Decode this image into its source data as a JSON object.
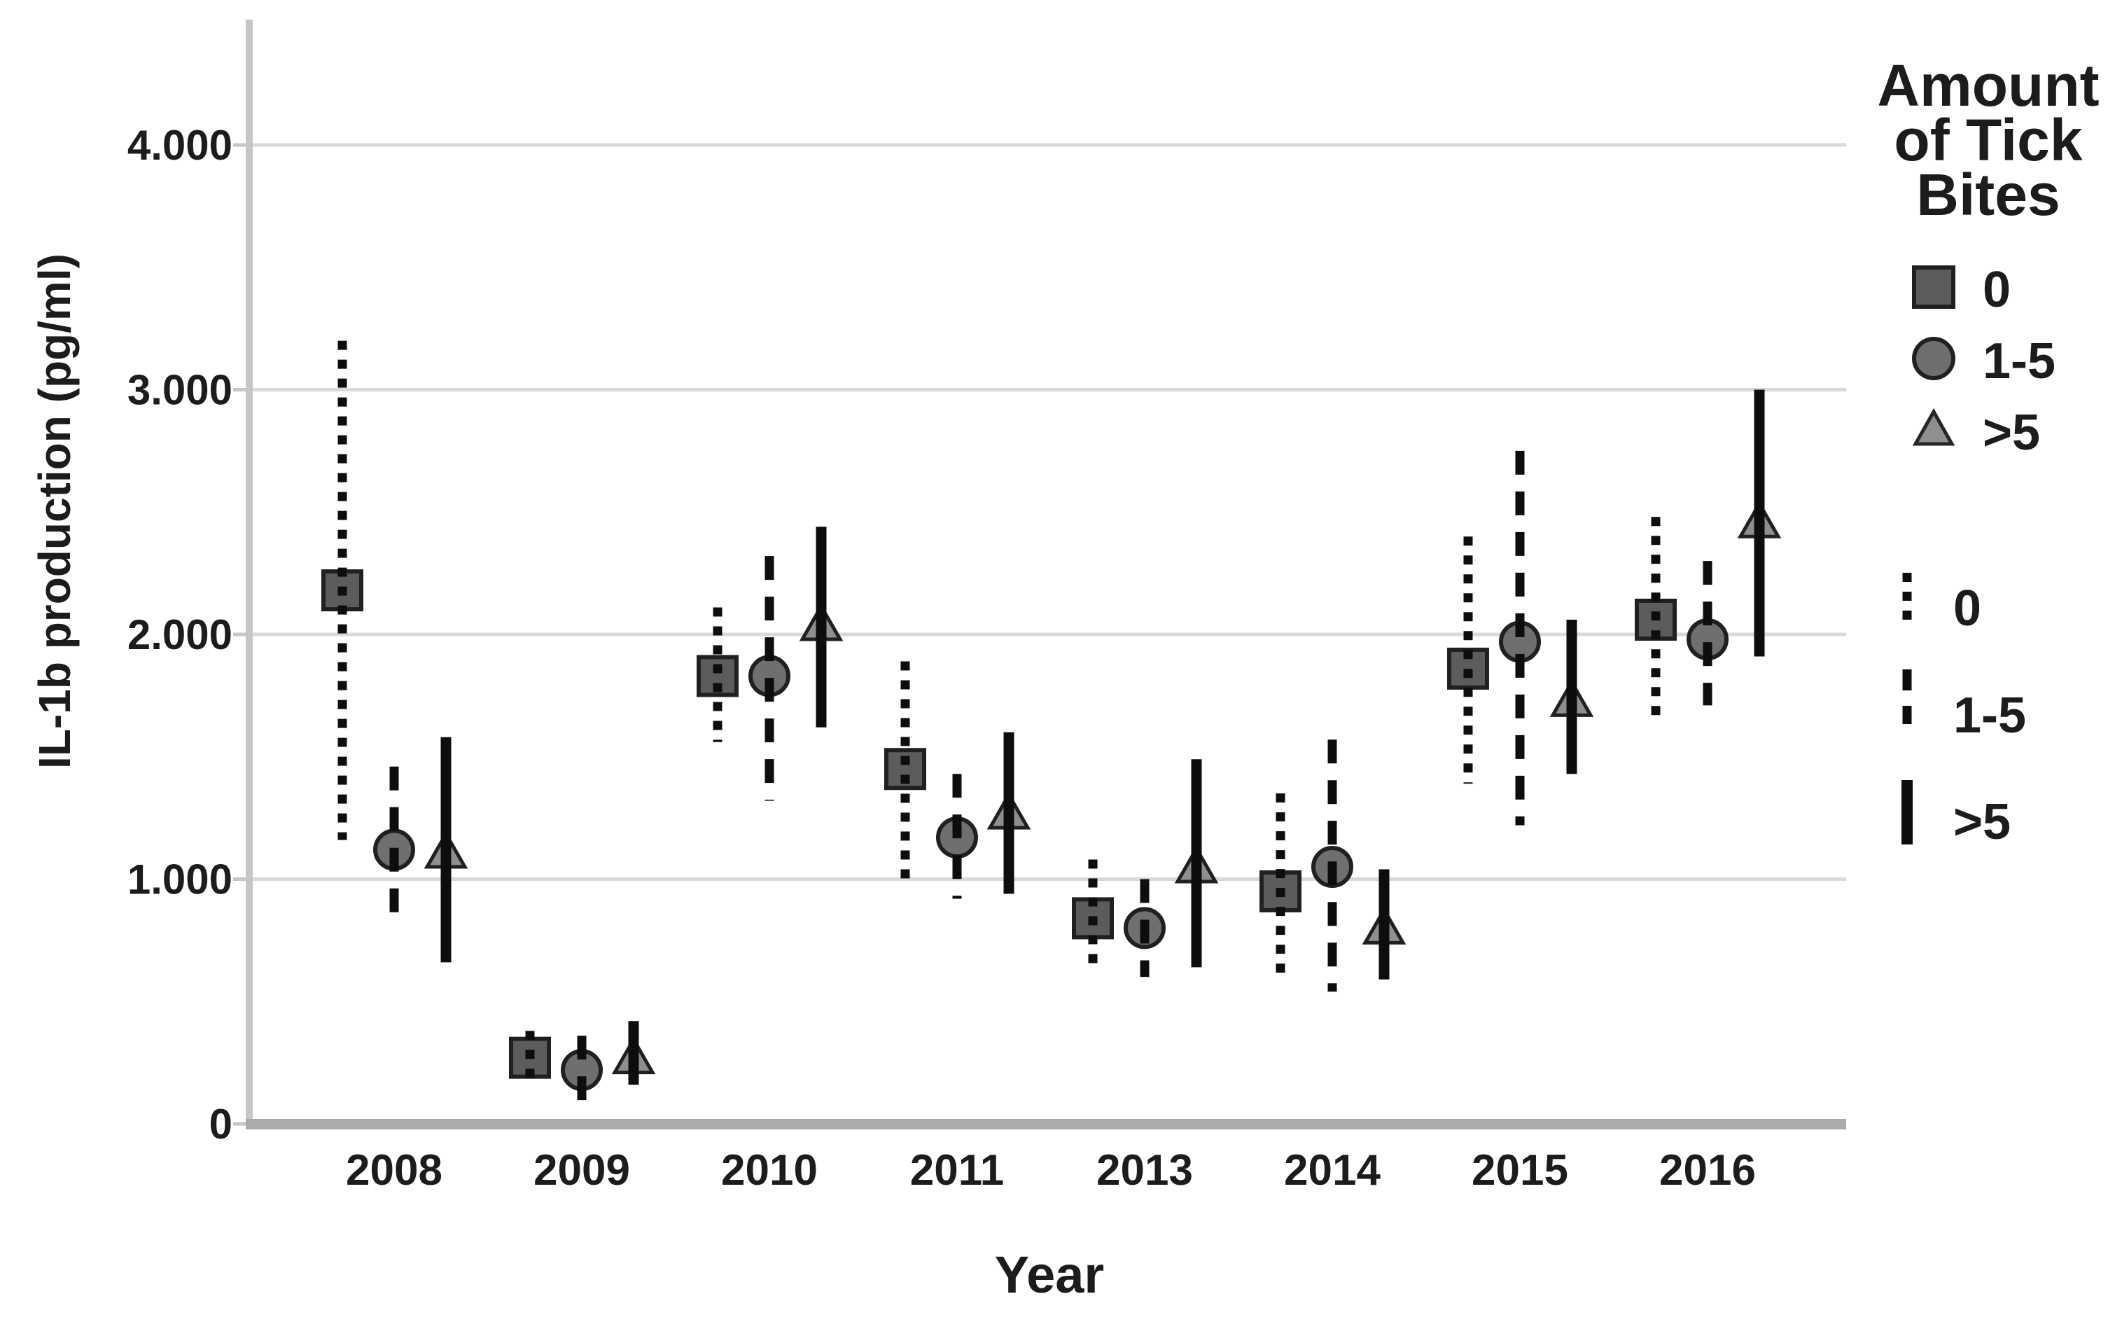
{
  "figure": {
    "y_axis": {
      "title": "IL-1b production (pg/ml)",
      "tick_labels": [
        "0",
        "1.000",
        "2.000",
        "3.000",
        "4.000"
      ],
      "tick_values": [
        0,
        1000,
        2000,
        3000,
        4000
      ]
    },
    "x_axis": {
      "title": "Year",
      "categories": [
        "2008",
        "2009",
        "2010",
        "2011",
        "2013",
        "2014",
        "2015",
        "2016"
      ]
    },
    "legend": {
      "title_lines": [
        "Amount",
        "of Tick",
        "Bites"
      ],
      "marker_entries": [
        {
          "label": "0",
          "marker": "square"
        },
        {
          "label": "1-5",
          "marker": "circle"
        },
        {
          "label": ">5",
          "marker": "triangle"
        }
      ],
      "line_entries": [
        {
          "label": "0",
          "style": "dotted"
        },
        {
          "label": "1-5",
          "style": "dashed"
        },
        {
          "label": ">5",
          "style": "solid"
        }
      ]
    }
  },
  "chart_data": {
    "type": "scatter",
    "title": "",
    "xlabel": "Year",
    "ylabel": "IL-1b production (pg/ml)",
    "x": [
      "2008",
      "2009",
      "2010",
      "2011",
      "2013",
      "2014",
      "2015",
      "2016"
    ],
    "ylim": [
      0,
      4350
    ],
    "grid": true,
    "legend_position": "right",
    "legend_title": "Amount of Tick Bites",
    "series": [
      {
        "name": "0",
        "marker": "square",
        "line_style": "dotted",
        "means": [
          2180,
          270,
          1830,
          1450,
          840,
          950,
          1860,
          2060
        ],
        "ci_low": [
          1160,
          160,
          1560,
          1000,
          640,
          590,
          1390,
          1650
        ],
        "ci_high": [
          3200,
          380,
          2110,
          1890,
          1080,
          1350,
          2400,
          2480
        ]
      },
      {
        "name": "1-5",
        "marker": "circle",
        "line_style": "dashed",
        "means": [
          1120,
          220,
          1830,
          1170,
          800,
          1050,
          1970,
          1980
        ],
        "ci_low": [
          840,
          90,
          1320,
          920,
          600,
          540,
          1220,
          1710
        ],
        "ci_high": [
          1460,
          360,
          2320,
          1430,
          1000,
          1570,
          2750,
          2300
        ]
      },
      {
        "name": ">5",
        "marker": "triangle",
        "line_style": "solid",
        "means": [
          1110,
          270,
          2040,
          1270,
          1050,
          800,
          1730,
          2460
        ],
        "ci_low": [
          660,
          160,
          1620,
          940,
          640,
          590,
          1430,
          1910
        ],
        "ci_high": [
          1580,
          420,
          2440,
          1600,
          1490,
          1040,
          2060,
          3000
        ]
      }
    ]
  },
  "colors": {
    "background": "#ffffff",
    "text": "#1c1c1c",
    "gridline": "#d9d9d9",
    "y_axis_bar": "#c6c6c6",
    "x_axis_bar": "#ababab",
    "error_bar": "#0d0d0d",
    "square_fill": "#5c5c5c",
    "circle_fill": "#6f6f6f",
    "triangle_fill": "#8f8f8f",
    "marker_stroke": "#202020"
  }
}
